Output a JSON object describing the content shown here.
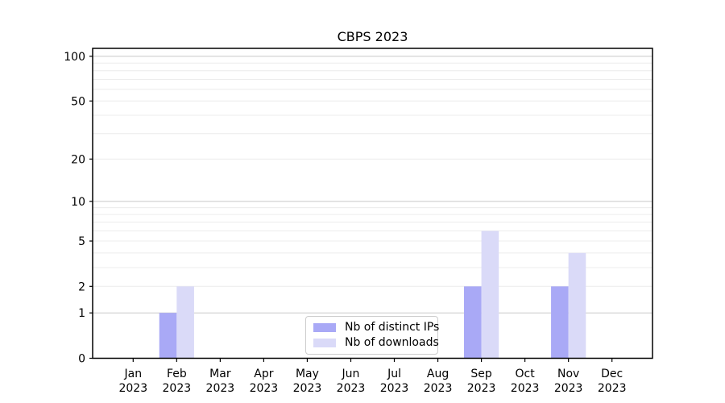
{
  "chart_data": {
    "type": "bar",
    "title": "CBPS 2023",
    "categories": [
      "Jan 2023",
      "Feb 2023",
      "Mar 2023",
      "Apr 2023",
      "May 2023",
      "Jun 2023",
      "Jul 2023",
      "Aug 2023",
      "Sep 2023",
      "Oct 2023",
      "Nov 2023",
      "Dec 2023"
    ],
    "x_tick_line1": [
      "Jan",
      "Feb",
      "Mar",
      "Apr",
      "May",
      "Jun",
      "Jul",
      "Aug",
      "Sep",
      "Oct",
      "Nov",
      "Dec"
    ],
    "x_tick_line2": [
      "2023",
      "2023",
      "2023",
      "2023",
      "2023",
      "2023",
      "2023",
      "2023",
      "2023",
      "2023",
      "2023",
      "2023"
    ],
    "series": [
      {
        "name": "Nb of distinct IPs",
        "color": "#a9a9f6",
        "values": [
          0,
          1,
          0,
          0,
          0,
          0,
          0,
          0,
          2,
          0,
          2,
          0
        ]
      },
      {
        "name": "Nb of downloads",
        "color": "#dadaf8",
        "values": [
          0,
          2,
          0,
          0,
          0,
          0,
          0,
          0,
          6,
          0,
          4,
          0
        ]
      }
    ],
    "yscale": "log1p",
    "ylim": [
      0,
      113
    ],
    "y_ticks": [
      0,
      1,
      2,
      5,
      10,
      20,
      50,
      100
    ],
    "y_major_gridlines": [
      1,
      10,
      100
    ],
    "y_minor_gridlines": [
      2,
      3,
      4,
      5,
      6,
      7,
      8,
      9,
      20,
      30,
      40,
      50,
      60,
      70,
      80,
      90
    ],
    "grid": true,
    "legend_position": "lower center",
    "colors": {
      "axis": "#000000",
      "text": "#000000",
      "major_grid": "#c8c8c8",
      "minor_grid": "#ececec",
      "background": "#ffffff"
    }
  }
}
